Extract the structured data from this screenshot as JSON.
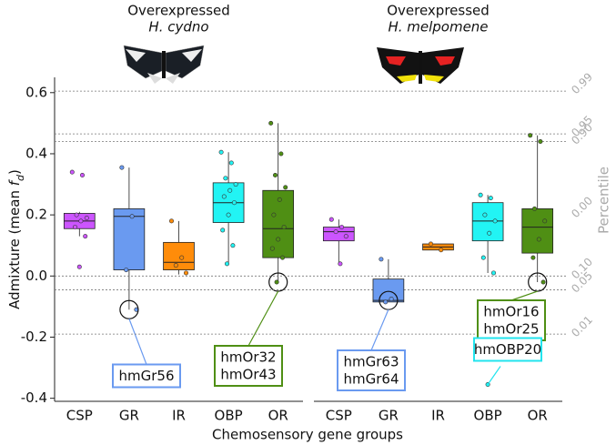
{
  "chart_data": [
    {
      "type": "box",
      "title": "Overexpressed",
      "subtitle": "H. cydno",
      "ylabel": [
        "Admixture (mean ",
        "f",
        "d",
        ")"
      ],
      "xlabel": "Chemosensory gene groups",
      "ylim": [
        -0.41,
        0.65
      ],
      "yticks": [
        -0.4,
        -0.2,
        {
          "value": 0,
          "label": "0.0"
        },
        0.2,
        0.4,
        0.6
      ],
      "categories": [
        "CSP",
        "GR",
        "IR",
        "OBP",
        "OR"
      ],
      "colors": [
        "#cc55ff",
        "#6a9af0",
        "#ff8c0a",
        "#22f4f4",
        "#4f8f14"
      ],
      "boxes": [
        {
          "low": 0.13,
          "q1": 0.155,
          "median": 0.18,
          "q3": 0.205,
          "high": 0.21,
          "points": [
            0.34,
            0.33,
            0.2,
            0.19,
            0.18,
            0.16,
            0.13,
            0.03
          ]
        },
        {
          "low": -0.11,
          "q1": 0.02,
          "median": 0.195,
          "q3": 0.22,
          "high": 0.355,
          "points": [
            0.355,
            0.195,
            0.02,
            -0.11
          ]
        },
        {
          "low": 0.005,
          "q1": 0.02,
          "median": 0.045,
          "q3": 0.11,
          "high": 0.18,
          "points": [
            0.18,
            0.06,
            0.035,
            0.01
          ]
        },
        {
          "low": 0.04,
          "q1": 0.175,
          "median": 0.24,
          "q3": 0.305,
          "high": 0.405,
          "points": [
            0.405,
            0.37,
            0.32,
            0.3,
            0.28,
            0.26,
            0.24,
            0.2,
            0.15,
            0.1,
            0.04
          ]
        },
        {
          "low": -0.02,
          "q1": 0.06,
          "median": 0.155,
          "q3": 0.28,
          "high": 0.5,
          "points": [
            0.5,
            0.4,
            0.33,
            0.29,
            0.25,
            0.2,
            0.16,
            0.12,
            0.09,
            0.06,
            -0.02
          ]
        }
      ],
      "annotations": [
        {
          "category": 1,
          "value": -0.11,
          "lines": [
            "hmGr56"
          ],
          "color": "#6a9af0"
        },
        {
          "category": 4,
          "value": -0.02,
          "lines": [
            "hmOr32",
            "hmOr43"
          ],
          "color": "#4f8f14"
        }
      ]
    },
    {
      "type": "box",
      "title": "Overexpressed",
      "subtitle": "H. melpomene",
      "ylim": [
        -0.41,
        0.65
      ],
      "categories": [
        "CSP",
        "GR",
        "IR",
        "OBP",
        "OR"
      ],
      "colors": [
        "#cc55ff",
        "#6a9af0",
        "#ff8c0a",
        "#22f4f4",
        "#4f8f14"
      ],
      "boxes": [
        {
          "low": 0.04,
          "q1": 0.115,
          "median": 0.145,
          "q3": 0.16,
          "high": 0.185,
          "points": [
            0.185,
            0.16,
            0.145,
            0.13,
            0.04
          ]
        },
        {
          "low": -0.085,
          "q1": -0.085,
          "median": -0.08,
          "q3": -0.01,
          "high": 0.055,
          "points": [
            0.055,
            -0.075,
            -0.085
          ]
        },
        {
          "low": 0.085,
          "q1": 0.085,
          "median": 0.095,
          "q3": 0.105,
          "high": 0.105,
          "points": [
            0.105,
            0.085
          ]
        },
        {
          "low": 0.01,
          "q1": 0.115,
          "median": 0.18,
          "q3": 0.24,
          "high": 0.265,
          "points": [
            0.265,
            0.255,
            0.2,
            0.18,
            0.14,
            0.06,
            0.01,
            -0.355
          ]
        },
        {
          "low": -0.02,
          "q1": 0.075,
          "median": 0.16,
          "q3": 0.22,
          "high": 0.46,
          "points": [
            0.46,
            0.44,
            0.22,
            0.18,
            0.12,
            0.06,
            -0.02
          ]
        }
      ],
      "annotations": [
        {
          "category": 1,
          "value": -0.08,
          "lines": [
            "hmGr63",
            "hmGr64"
          ],
          "color": "#6a9af0"
        },
        {
          "category": 4,
          "value": -0.02,
          "lines": [
            "hmOr16",
            "hmOr25"
          ],
          "color": "#4f8f14"
        },
        {
          "category": 3,
          "value": -0.355,
          "lines": [
            "hmOBP20"
          ],
          "color": "#22e4ee"
        }
      ],
      "percentile_label": "Percentile",
      "percentiles": [
        {
          "value": 0.605,
          "label": "0.99"
        },
        {
          "value": 0.465,
          "label": "0.95"
        },
        {
          "value": 0.44,
          "label": "0.90"
        },
        {
          "value": 0.2,
          "label": "0.00",
          "line": false
        },
        {
          "value": 0.0,
          "label": "0.10"
        },
        {
          "value": -0.045,
          "label": "0.05"
        },
        {
          "value": -0.19,
          "label": "0.01"
        }
      ]
    }
  ]
}
